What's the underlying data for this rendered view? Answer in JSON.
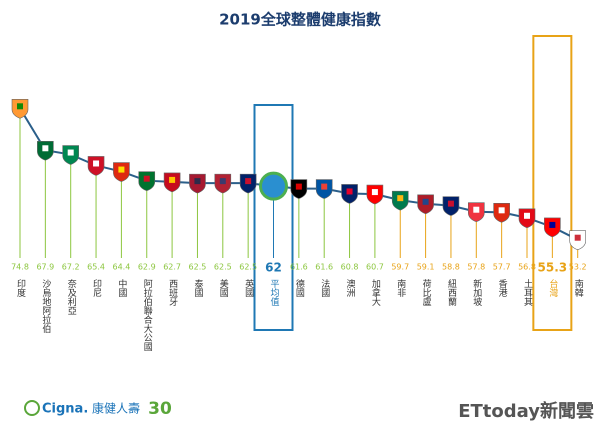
{
  "chart_data": {
    "type": "line",
    "title": "2019全球整體健康指數",
    "categories": [
      "印度",
      "沙烏地阿拉伯",
      "奈及利亞",
      "印尼",
      "中國",
      "阿拉伯聯合大公國",
      "西班牙",
      "泰國",
      "美國",
      "英國",
      "平均值",
      "德國",
      "法國",
      "澳洲",
      "加拿大",
      "南非",
      "荷比盧",
      "紐西蘭",
      "新加坡",
      "香港",
      "土耳其",
      "台灣",
      "南韓"
    ],
    "values": [
      74.8,
      67.9,
      67.2,
      65.4,
      64.4,
      62.9,
      62.7,
      62.5,
      62.5,
      62.5,
      62.0,
      61.6,
      61.6,
      60.8,
      60.7,
      59.7,
      59.1,
      58.8,
      57.8,
      57.7,
      56.8,
      55.3,
      53.2
    ],
    "value_colors": [
      "#8cc63f",
      "#8cc63f",
      "#8cc63f",
      "#8cc63f",
      "#8cc63f",
      "#8cc63f",
      "#8cc63f",
      "#8cc63f",
      "#8cc63f",
      "#8cc63f",
      "#1f78b4",
      "#8cc63f",
      "#8cc63f",
      "#8cc63f",
      "#8cc63f",
      "#e8a317",
      "#e8a317",
      "#e8a317",
      "#e8a317",
      "#e8a317",
      "#e8a317",
      "#e8a317",
      "#e8a317"
    ],
    "color": "#2b5f8a",
    "ylim": [
      52,
      76
    ],
    "highlight_categories": [
      "平均值",
      "台灣"
    ],
    "highlight_colors": [
      "#1f78b4",
      "#e8a317"
    ],
    "footer": {
      "brand": "Cigna.",
      "brand_cn": "康健人壽",
      "anniversary": "30",
      "watermark": "ETtoday新聞雲"
    }
  }
}
